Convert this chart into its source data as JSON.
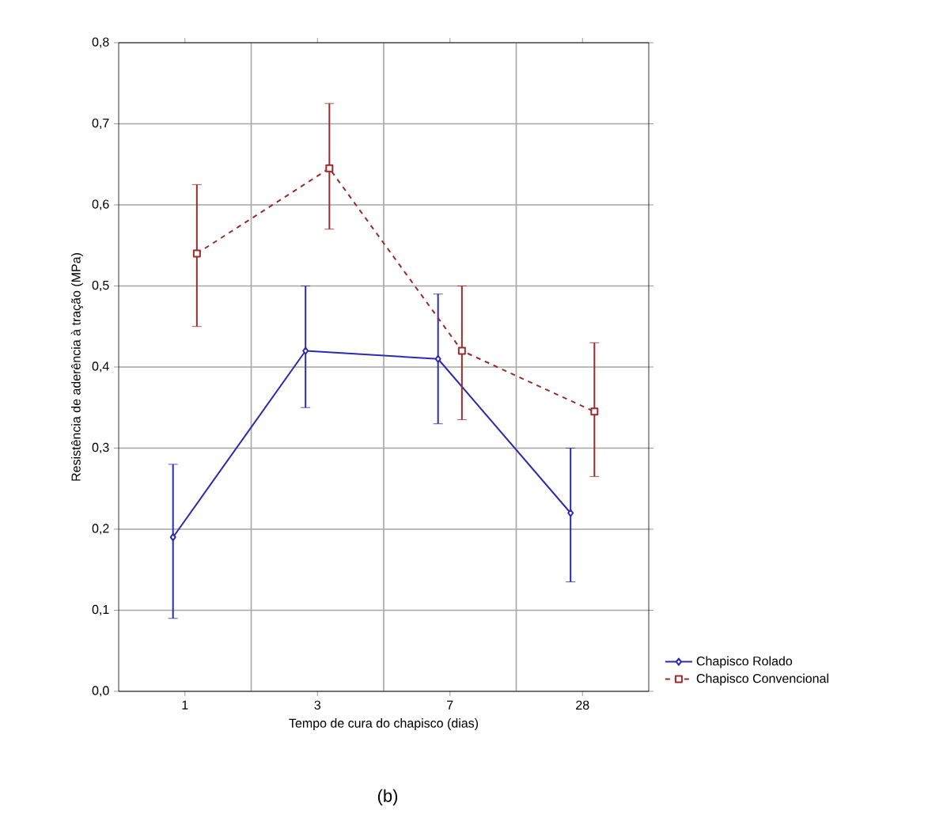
{
  "chart_data": {
    "type": "line",
    "xlabel": "Tempo de cura do chapisco (dias)",
    "ylabel": "Resistência de aderência à tração (MPa)",
    "annotations": [
      "(b)"
    ],
    "categories": [
      "1",
      "3",
      "7",
      "28"
    ],
    "series": [
      {
        "name": "Chapisco Rolado",
        "color": "#2b2bb0",
        "marker": "diamond",
        "line_style": "solid",
        "values": [
          0.19,
          0.42,
          0.41,
          0.22
        ],
        "errors": [
          [
            0.09,
            0.28
          ],
          [
            0.35,
            0.5
          ],
          [
            0.33,
            0.49
          ],
          [
            0.135,
            0.3
          ]
        ]
      },
      {
        "name": "Chapisco Convencional",
        "color": "#9b2a2a",
        "marker": "square",
        "line_style": "dashed",
        "values": [
          0.54,
          0.645,
          0.42,
          0.345
        ],
        "errors": [
          [
            0.45,
            0.625
          ],
          [
            0.57,
            0.725
          ],
          [
            0.335,
            0.5
          ],
          [
            0.265,
            0.43
          ]
        ]
      }
    ],
    "ylim": [
      0,
      0.8
    ],
    "yticks": [
      {
        "value": 0,
        "label": "0,0"
      },
      {
        "value": 0.1,
        "label": "0,1"
      },
      {
        "value": 0.2,
        "label": "0,2"
      },
      {
        "value": 0.3,
        "label": "0,3"
      },
      {
        "value": 0.4,
        "label": "0,4"
      },
      {
        "value": 0.5,
        "label": "0,5"
      },
      {
        "value": 0.6,
        "label": "0,6"
      },
      {
        "value": 0.7,
        "label": "0,7"
      },
      {
        "value": 0.8,
        "label": "0,8"
      }
    ],
    "grid": true,
    "legend": "bottom right"
  }
}
